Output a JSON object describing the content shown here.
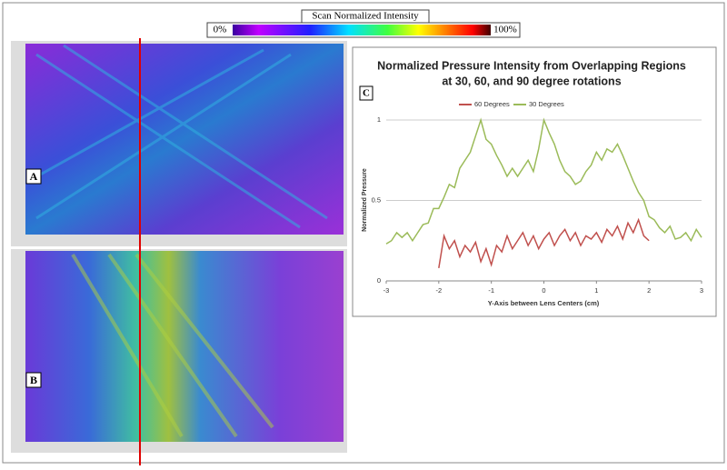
{
  "colorbar": {
    "title": "Scan Normalized Intensity",
    "min_label": "0%",
    "max_label": "100%"
  },
  "panels": {
    "a": "A",
    "b": "B"
  },
  "chart_data": {
    "type": "line",
    "panel_label": "C",
    "title": [
      "Normalized Pressure Intensity from Overlapping Regions",
      "at 30, 60, and 90 degree rotations"
    ],
    "xlabel": "Y-Axis between Lens Centers (cm)",
    "ylabel": "Normalized Pressure",
    "xlim": [
      -3,
      3
    ],
    "xticks": [
      -3,
      -2,
      -1,
      0,
      1,
      2,
      3
    ],
    "ylim": [
      0,
      1
    ],
    "yticks": [
      0,
      0.5,
      1
    ],
    "grid": true,
    "legend": "top",
    "x": [
      -3.0,
      -2.9,
      -2.8,
      -2.7,
      -2.6,
      -2.5,
      -2.4,
      -2.3,
      -2.2,
      -2.1,
      -2.0,
      -1.9,
      -1.8,
      -1.7,
      -1.6,
      -1.5,
      -1.4,
      -1.3,
      -1.2,
      -1.1,
      -1.0,
      -0.9,
      -0.8,
      -0.7,
      -0.6,
      -0.5,
      -0.4,
      -0.3,
      -0.2,
      -0.1,
      0.0,
      0.1,
      0.2,
      0.3,
      0.4,
      0.5,
      0.6,
      0.7,
      0.8,
      0.9,
      1.0,
      1.1,
      1.2,
      1.3,
      1.4,
      1.5,
      1.6,
      1.7,
      1.8,
      1.9,
      2.0,
      2.1,
      2.2,
      2.3,
      2.4,
      2.5,
      2.6,
      2.7,
      2.8,
      2.9,
      3.0
    ],
    "series": [
      {
        "name": "60 Degrees",
        "color": "#c0504d",
        "values": [
          null,
          null,
          null,
          null,
          null,
          null,
          null,
          null,
          null,
          null,
          0.08,
          0.28,
          0.2,
          0.25,
          0.15,
          0.22,
          0.18,
          0.24,
          0.12,
          0.2,
          0.1,
          0.22,
          0.18,
          0.28,
          0.2,
          0.25,
          0.3,
          0.22,
          0.28,
          0.2,
          0.26,
          0.3,
          0.22,
          0.28,
          0.32,
          0.25,
          0.3,
          0.22,
          0.28,
          0.26,
          0.3,
          0.24,
          0.32,
          0.28,
          0.34,
          0.26,
          0.36,
          0.3,
          0.38,
          0.28,
          0.25,
          null,
          null,
          null,
          null,
          null,
          null,
          null,
          null,
          null,
          null
        ]
      },
      {
        "name": "30 Degrees",
        "color": "#9bbb59",
        "values": [
          0.23,
          0.25,
          0.3,
          0.27,
          0.3,
          0.25,
          0.3,
          0.35,
          0.36,
          0.45,
          0.45,
          0.52,
          0.6,
          0.58,
          0.7,
          0.75,
          0.8,
          0.9,
          1.0,
          0.88,
          0.85,
          0.78,
          0.72,
          0.65,
          0.7,
          0.65,
          0.7,
          0.75,
          0.68,
          0.82,
          1.0,
          0.92,
          0.85,
          0.75,
          0.68,
          0.65,
          0.6,
          0.62,
          0.68,
          0.72,
          0.8,
          0.75,
          0.82,
          0.8,
          0.85,
          0.78,
          0.7,
          0.62,
          0.55,
          0.5,
          0.4,
          0.38,
          0.33,
          0.3,
          0.34,
          0.26,
          0.27,
          0.3,
          0.25,
          0.32,
          0.27
        ]
      }
    ]
  }
}
